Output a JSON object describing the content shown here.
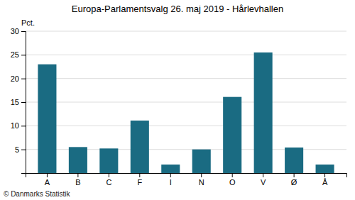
{
  "chart_data": {
    "type": "bar",
    "title": "Europa-Parlamentsvalg 26. maj 2019 - Hårlevhallen",
    "ylabel": "Pct.",
    "footer": "© Danmarks Statistik",
    "categories": [
      "A",
      "B",
      "C",
      "F",
      "I",
      "N",
      "O",
      "V",
      "Ø",
      "Å"
    ],
    "values": [
      23.0,
      5.5,
      5.2,
      11.1,
      1.8,
      5.0,
      16.1,
      25.5,
      5.4,
      1.8
    ],
    "color": "#1a6b82",
    "ylim": [
      0,
      30
    ],
    "yticks": [
      5,
      10,
      15,
      20,
      25,
      30
    ],
    "grid": true
  }
}
